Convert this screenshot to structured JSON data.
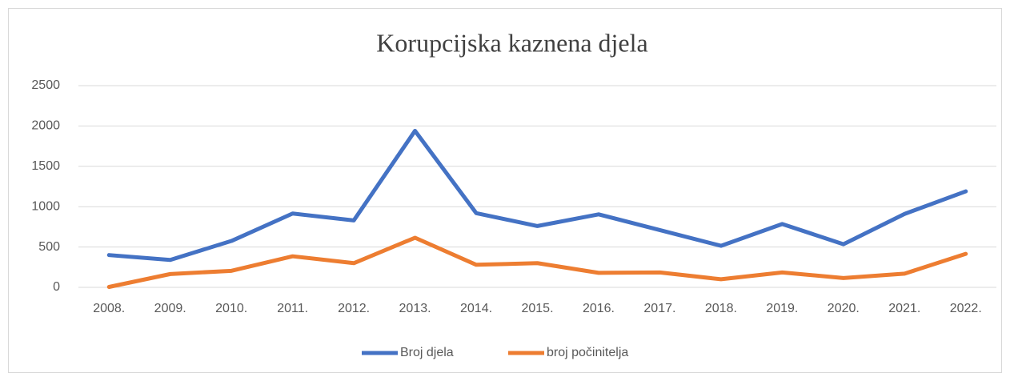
{
  "chart_data": {
    "type": "line",
    "title": "Korupcijska kaznena djela",
    "categories": [
      "2008.",
      "2009.",
      "2010.",
      "2011.",
      "2012.",
      "2013.",
      "2014.",
      "2015.",
      "2016.",
      "2017.",
      "2018.",
      "2019.",
      "2020.",
      "2021.",
      "2022."
    ],
    "series": [
      {
        "name": "Broj djela",
        "color": "#4472c4",
        "values": [
          400,
          340,
          575,
          915,
          830,
          1940,
          920,
          760,
          905,
          710,
          515,
          785,
          535,
          910,
          1190
        ]
      },
      {
        "name": "broj počinitelja",
        "color": "#ed7d31",
        "values": [
          5,
          165,
          205,
          385,
          300,
          615,
          280,
          300,
          180,
          185,
          100,
          185,
          115,
          170,
          415
        ]
      }
    ],
    "ylim": [
      0,
      2500
    ],
    "yticks": [
      0,
      500,
      1000,
      1500,
      2000,
      2500
    ],
    "grid": true,
    "legend": "bottom"
  }
}
